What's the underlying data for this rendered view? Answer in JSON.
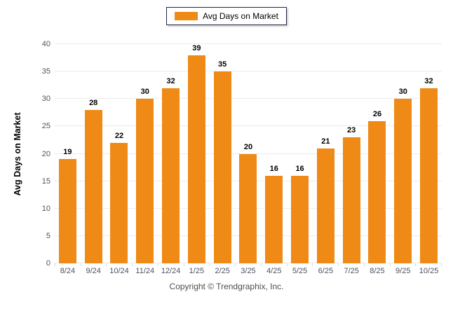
{
  "legend": {
    "label": "Avg Days on Market",
    "swatch_color": "#ee8a15"
  },
  "chart_data": {
    "type": "bar",
    "title": "",
    "series_name": "Avg Days on Market",
    "categories": [
      "8/24",
      "9/24",
      "10/24",
      "11/24",
      "12/24",
      "1/25",
      "2/25",
      "3/25",
      "4/25",
      "5/25",
      "6/25",
      "7/25",
      "8/25",
      "9/25",
      "10/25"
    ],
    "values": [
      19,
      28,
      22,
      30,
      32,
      39,
      35,
      20,
      16,
      16,
      21,
      23,
      26,
      30,
      32
    ],
    "xlabel": "",
    "ylabel": "Avg Days on Market",
    "ylim": [
      0,
      40
    ],
    "ytick_step": 5,
    "ytick_labels": [
      "0",
      "5",
      "10",
      "15",
      "20",
      "25",
      "30",
      "35",
      "40"
    ],
    "bar_color": "#ee8a15",
    "grid": true,
    "gridline_color": "#ececec",
    "legend_position": "top-center",
    "value_labels": true
  },
  "footer": {
    "text": "Copyright © Trendgraphix, Inc."
  }
}
